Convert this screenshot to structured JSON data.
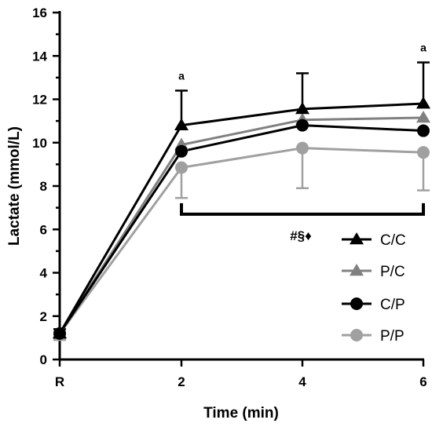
{
  "chart_data": {
    "type": "line",
    "xlabel": "Time (min)",
    "ylabel": "Lactate (mmol/L)",
    "x_categories": [
      "R",
      "2",
      "4",
      "6"
    ],
    "ylim": [
      0,
      16
    ],
    "y_ticks": [
      "0",
      "2",
      "4",
      "6",
      "8",
      "10",
      "12",
      "14",
      "16"
    ],
    "grid": false,
    "legend_position": "bottom-right",
    "series": [
      {
        "name": "C/C",
        "marker": "triangle",
        "color": "#000000",
        "values": [
          1.2,
          10.8,
          11.55,
          11.8
        ],
        "err_up": [
          0.2,
          1.6,
          1.65,
          1.9
        ],
        "err_down": [
          0.2,
          0,
          0,
          0
        ]
      },
      {
        "name": "P/C",
        "marker": "triangle",
        "color": "#808080",
        "values": [
          1.2,
          9.9,
          11.05,
          11.15
        ],
        "err_up": [
          0,
          0,
          0,
          0
        ],
        "err_down": [
          0,
          0,
          0,
          0
        ]
      },
      {
        "name": "C/P",
        "marker": "circle",
        "color": "#000000",
        "values": [
          1.2,
          9.6,
          10.8,
          10.55
        ],
        "err_up": [
          0,
          0,
          0,
          0
        ],
        "err_down": [
          0,
          0,
          0,
          0
        ]
      },
      {
        "name": "P/P",
        "marker": "circle",
        "color": "#a0a0a0",
        "values": [
          1.2,
          8.85,
          9.75,
          9.55
        ],
        "err_up": [
          0,
          0,
          0,
          0
        ],
        "err_down": [
          0.3,
          1.4,
          1.85,
          1.75
        ]
      }
    ],
    "annotations": [
      {
        "text": "a",
        "x": "2",
        "y": 12.9
      },
      {
        "text": "a",
        "x": "6",
        "y": 14.2
      }
    ],
    "significance_bracket": {
      "from": "2",
      "to": "6",
      "y": 6.7,
      "label": "#§♦"
    }
  }
}
